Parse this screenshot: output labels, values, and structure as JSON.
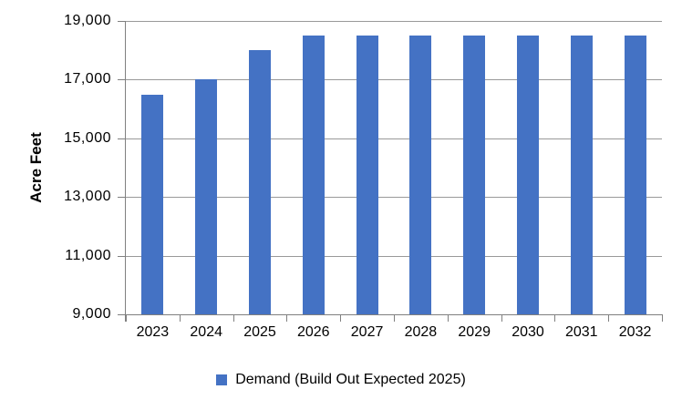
{
  "chart_data": {
    "type": "bar",
    "categories": [
      "2023",
      "2024",
      "2025",
      "2026",
      "2027",
      "2028",
      "2029",
      "2030",
      "2031",
      "2032"
    ],
    "series": [
      {
        "name": "Demand (Build Out Expected 2025)",
        "color": "#4472C4",
        "values": [
          16500,
          17000,
          18000,
          18500,
          18500,
          18500,
          18500,
          18500,
          18500,
          18500
        ]
      }
    ],
    "title": "",
    "xlabel": "",
    "ylabel": "Acre Feet",
    "ylim": [
      9000,
      19000
    ],
    "ytick_interval": 2000,
    "ytick_labels": [
      "9,000",
      "11,000",
      "13,000",
      "15,000",
      "17,000",
      "19,000"
    ],
    "grid": true,
    "legend_position": "bottom-center"
  },
  "legend": {
    "label": "Demand (Build Out Expected 2025)",
    "marker_color": "#4472C4"
  },
  "colors": {
    "bar": "#4472C4",
    "gridline": "#999999",
    "axis": "#808080",
    "text": "#000000",
    "background": "#FFFFFF"
  }
}
